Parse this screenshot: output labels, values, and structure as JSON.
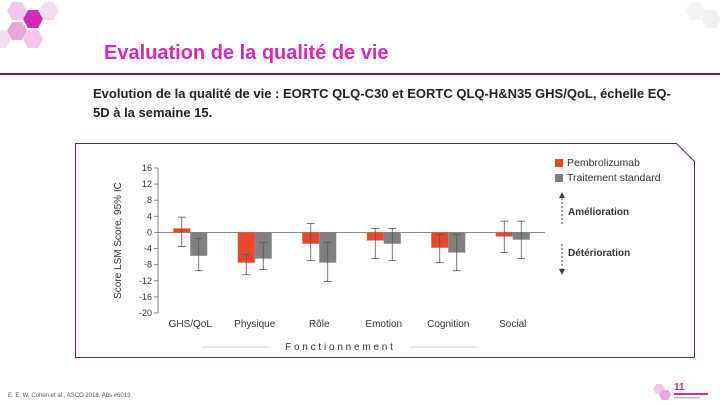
{
  "slide": {
    "title": "Evaluation de la qualité de vie",
    "subtitle": "Evolution de la qualité de vie : EORTC QLQ-C30 et EORTC QLQ-H&N35 GHS/QoL, échelle EQ-5D à la semaine 15.",
    "footer": "E. E. W. Cohen et al., ASCO 2018, Abs #6013",
    "accent_color": "#d52ab3",
    "frame_color": "#6b1f6e"
  },
  "chart_data": {
    "type": "bar",
    "ylabel": "Score LSM Score, 95% IC",
    "xlabel": "F o n c t i o n n e m e n t",
    "ylim": [
      -20,
      16
    ],
    "yticks": [
      16,
      12,
      8,
      4,
      0,
      -4,
      -8,
      -12,
      -16,
      -20
    ],
    "categories": [
      "GHS/QoL",
      "Physique",
      "Rôle",
      "Emotion",
      "Cognition",
      "Social"
    ],
    "series": [
      {
        "name": "Pembrolizumab",
        "color": "#e8482a",
        "values": [
          1.0,
          -7.5,
          -2.8,
          -2.0,
          -3.8,
          -1.0
        ],
        "ci_low": [
          -3.5,
          -10.5,
          -7.0,
          -6.5,
          -7.5,
          -5.0
        ],
        "ci_high": [
          3.8,
          -5.5,
          2.2,
          1.0,
          -0.5,
          2.8
        ]
      },
      {
        "name": "Traitement standard",
        "color": "#808080",
        "values": [
          -5.8,
          -6.5,
          -7.5,
          -2.8,
          -5.0,
          -1.8
        ],
        "ci_low": [
          -9.5,
          -9.2,
          -12.2,
          -7.0,
          -9.5,
          -6.5
        ],
        "ci_high": [
          -1.5,
          -2.5,
          -2.5,
          1.0,
          -0.5,
          2.8
        ]
      }
    ],
    "annotations": {
      "up": "Amélioration",
      "down": "Détérioration"
    },
    "legend_position": "top-right",
    "grid": false
  }
}
